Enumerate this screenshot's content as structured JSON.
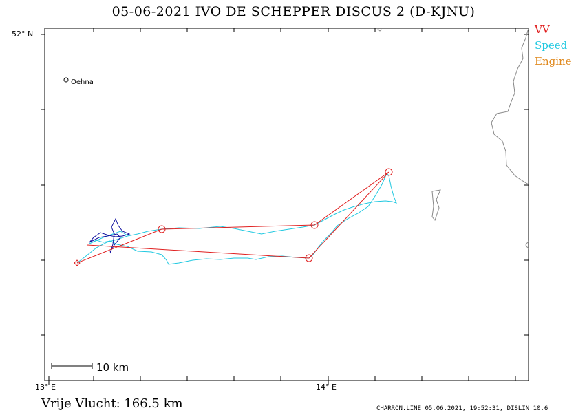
{
  "header": {
    "title": "05-06-2021    IVO      DE SCHEPPER    DISCUS 2 (D-KJNU)"
  },
  "legend": [
    {
      "label": "VV",
      "color": "#e02020"
    },
    {
      "label": "Speed",
      "color": "#20c8e0"
    },
    {
      "label": "Engine",
      "color": "#e08a20"
    }
  ],
  "axes": {
    "lat_label": "52° N",
    "lon_labels": [
      "13° E",
      "14° E"
    ]
  },
  "map": {
    "place": "Oehna",
    "scale_label": "10 km",
    "track_color": "#20c8e0",
    "task_color": "#e02020",
    "start_track_color": "#1010a0",
    "border_color": "#808080"
  },
  "footer": {
    "distance": "Vrije Vlucht:  166.5 km",
    "credit": "CHARRON.LINE 05.06.2021, 19:52:31, DISLIN 10.6"
  }
}
